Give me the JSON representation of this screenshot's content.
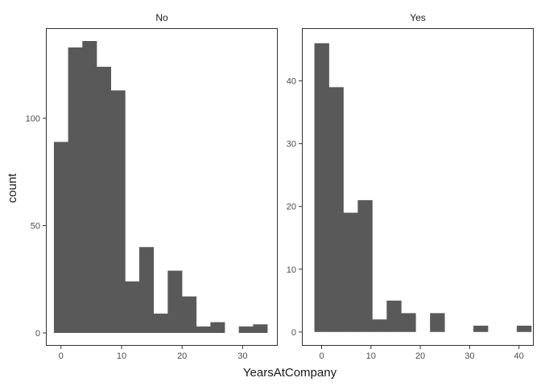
{
  "chart_data": {
    "type": "bar",
    "xlabel": "YearsAtCompany",
    "ylabel": "count",
    "grid": false,
    "bin_width": 2.35,
    "panels": [
      {
        "name": "No",
        "xlim": [
          -2.5,
          35.8
        ],
        "ylim": [
          -6,
          142
        ],
        "xticks": [
          0,
          10,
          20,
          30
        ],
        "yticks": [
          0,
          50,
          100
        ],
        "bins": [
          {
            "x": 0.0,
            "count": 89
          },
          {
            "x": 2.35,
            "count": 133
          },
          {
            "x": 4.7,
            "count": 136
          },
          {
            "x": 7.05,
            "count": 124
          },
          {
            "x": 9.4,
            "count": 113
          },
          {
            "x": 11.75,
            "count": 24
          },
          {
            "x": 14.1,
            "count": 40
          },
          {
            "x": 16.45,
            "count": 9
          },
          {
            "x": 18.8,
            "count": 29
          },
          {
            "x": 21.15,
            "count": 17
          },
          {
            "x": 23.5,
            "count": 3
          },
          {
            "x": 25.85,
            "count": 5
          },
          {
            "x": 28.2,
            "count": 0
          },
          {
            "x": 30.55,
            "count": 3
          },
          {
            "x": 32.9,
            "count": 4
          }
        ]
      },
      {
        "name": "Yes",
        "xlim": [
          -4,
          43
        ],
        "ylim": [
          -2.2,
          48.4
        ],
        "xticks": [
          0,
          10,
          20,
          30,
          40
        ],
        "yticks": [
          0,
          10,
          20,
          30,
          40
        ],
        "bins": [
          {
            "x": 0.0,
            "count": 46
          },
          {
            "x": 2.93,
            "count": 39
          },
          {
            "x": 5.86,
            "count": 19
          },
          {
            "x": 8.79,
            "count": 21
          },
          {
            "x": 11.72,
            "count": 2
          },
          {
            "x": 14.65,
            "count": 5
          },
          {
            "x": 17.58,
            "count": 3
          },
          {
            "x": 20.51,
            "count": 0
          },
          {
            "x": 23.44,
            "count": 3
          },
          {
            "x": 26.37,
            "count": 0
          },
          {
            "x": 29.3,
            "count": 0
          },
          {
            "x": 32.23,
            "count": 1
          },
          {
            "x": 35.16,
            "count": 0
          },
          {
            "x": 38.09,
            "count": 0
          },
          {
            "x": 41.02,
            "count": 1
          }
        ]
      }
    ]
  }
}
